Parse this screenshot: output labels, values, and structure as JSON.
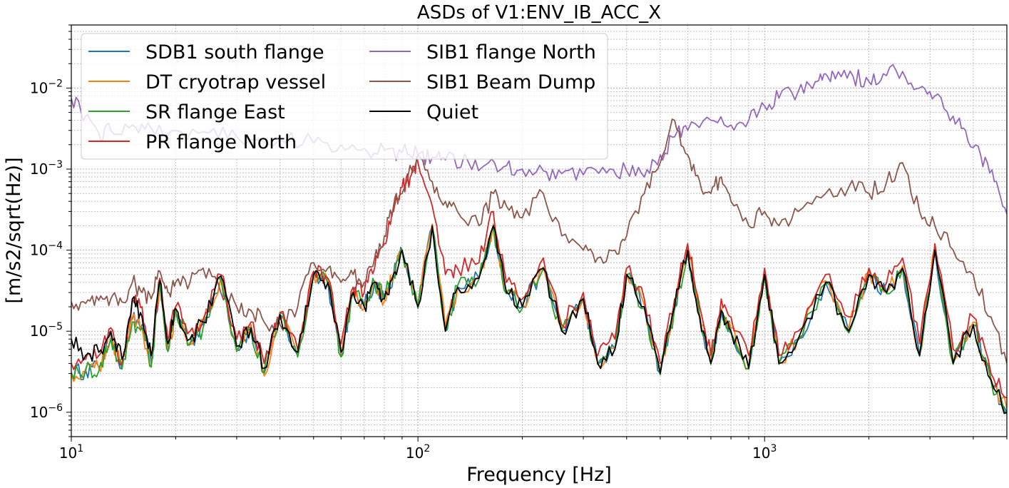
{
  "chart_data": {
    "type": "line",
    "title": "ASDs of V1:ENV_IB_ACC_X",
    "xlabel": "Frequency [Hz]",
    "ylabel": "[m/s2/sqrt(Hz)]",
    "xscale": "log",
    "yscale": "log",
    "xlim": [
      10,
      5000
    ],
    "ylim": [
      5e-07,
      0.06
    ],
    "grid": true,
    "legend_placement": "top-left",
    "legend_columns": 2,
    "x_ticks": [
      {
        "value": 10,
        "base": "10",
        "exp": "1"
      },
      {
        "value": 100,
        "base": "10",
        "exp": "2"
      },
      {
        "value": 1000,
        "base": "10",
        "exp": "3"
      }
    ],
    "y_ticks": [
      {
        "value": 1e-06,
        "base": "10",
        "exp": "−6"
      },
      {
        "value": 1e-05,
        "base": "10",
        "exp": "−5"
      },
      {
        "value": 0.0001,
        "base": "10",
        "exp": "−4"
      },
      {
        "value": 0.001,
        "base": "10",
        "exp": "−3"
      },
      {
        "value": 0.01,
        "base": "10",
        "exp": "−2"
      }
    ],
    "series": [
      {
        "name": "SDB1 south flange",
        "color": "#1f77b4",
        "x": [
          10,
          11,
          12,
          13,
          14,
          15,
          16,
          17,
          18,
          19,
          20,
          22,
          24,
          27,
          30,
          33,
          36,
          40,
          45,
          50,
          55,
          60,
          65,
          70,
          75,
          80,
          85,
          90,
          100,
          110,
          120,
          130,
          150,
          165,
          180,
          200,
          230,
          260,
          300,
          330,
          370,
          400,
          450,
          500,
          550,
          600,
          650,
          700,
          750,
          800,
          900,
          1000,
          1100,
          1250,
          1500,
          1750,
          2000,
          2250,
          2500,
          2800,
          3100,
          3500,
          4000,
          4500,
          5000
        ],
        "y": [
          3e-06,
          3.3e-06,
          3.6e-06,
          9e-06,
          3.5e-06,
          1.4e-05,
          1.2e-05,
          4e-06,
          4e-05,
          6e-06,
          1.8e-05,
          7e-06,
          1.2e-05,
          4.6e-05,
          6e-06,
          1.1e-05,
          3e-06,
          1.6e-05,
          5e-06,
          5e-05,
          4e-05,
          5e-06,
          3e-05,
          2e-05,
          4e-05,
          2.5e-05,
          5e-05,
          0.0001,
          2e-05,
          0.0002,
          1e-05,
          3.5e-05,
          4.5e-05,
          0.0002,
          3e-05,
          2e-05,
          6e-05,
          1e-05,
          2.5e-05,
          4e-06,
          6e-06,
          5e-05,
          2e-05,
          3e-06,
          2e-05,
          0.0001,
          1.5e-05,
          4e-06,
          1.8e-05,
          1e-05,
          3.5e-06,
          5e-05,
          4e-06,
          8e-06,
          4e-05,
          1e-05,
          5e-05,
          3e-05,
          6e-05,
          5e-06,
          0.0001,
          4e-06,
          1.2e-05,
          2.5e-06,
          1e-06
        ]
      },
      {
        "name": "DT cryotrap vessel",
        "color": "#ff7f0e",
        "x": [
          10,
          11,
          12,
          13,
          14,
          15,
          16,
          17,
          18,
          19,
          20,
          22,
          24,
          27,
          30,
          33,
          36,
          40,
          45,
          50,
          55,
          60,
          65,
          70,
          75,
          80,
          85,
          90,
          100,
          110,
          120,
          130,
          150,
          165,
          180,
          200,
          230,
          260,
          300,
          330,
          370,
          400,
          450,
          500,
          550,
          600,
          650,
          700,
          750,
          800,
          900,
          1000,
          1100,
          1250,
          1500,
          1750,
          2000,
          2250,
          2500,
          2800,
          3100,
          3500,
          4000,
          4500,
          5000
        ],
        "y": [
          2.9e-06,
          3.2e-06,
          3.5e-06,
          8.5e-06,
          3.6e-06,
          1.5e-05,
          1.1e-05,
          3.8e-06,
          4.2e-05,
          5.8e-06,
          1.7e-05,
          7.2e-06,
          1.3e-05,
          4.5e-05,
          5.8e-06,
          1.2e-05,
          2.8e-06,
          1.5e-05,
          5.2e-06,
          4.8e-05,
          4.1e-05,
          5.2e-06,
          3.1e-05,
          1.9e-05,
          4.2e-05,
          2.4e-05,
          5.2e-05,
          9.5e-05,
          2.1e-05,
          0.00021,
          1.1e-05,
          3.4e-05,
          4.6e-05,
          0.00021,
          3.1e-05,
          2.1e-05,
          6.2e-05,
          1.1e-05,
          2.4e-05,
          4.1e-06,
          6.2e-06,
          5.1e-05,
          2.1e-05,
          3.1e-06,
          2.1e-05,
          0.00011,
          1.6e-05,
          4.2e-06,
          1.9e-05,
          1.1e-05,
          3.6e-06,
          5.2e-05,
          4.1e-06,
          8.2e-06,
          4.2e-05,
          1.1e-05,
          5.4e-05,
          3.1e-05,
          6.4e-05,
          5.1e-06,
          0.00011,
          4.1e-06,
          1.3e-05,
          2.6e-06,
          1.1e-06
        ]
      },
      {
        "name": "SR flange East",
        "color": "#2ca02c",
        "x": [
          10,
          11,
          12,
          13,
          14,
          15,
          16,
          17,
          18,
          19,
          20,
          22,
          24,
          27,
          30,
          33,
          36,
          40,
          45,
          50,
          55,
          60,
          65,
          70,
          75,
          80,
          85,
          90,
          100,
          110,
          120,
          130,
          150,
          165,
          180,
          200,
          230,
          260,
          300,
          330,
          370,
          400,
          450,
          500,
          550,
          600,
          650,
          700,
          750,
          800,
          900,
          1000,
          1100,
          1250,
          1500,
          1750,
          2000,
          2250,
          2500,
          2800,
          3100,
          3500,
          4000,
          4500,
          5000
        ],
        "y": [
          3.1e-06,
          3.4e-06,
          3.2e-06,
          8e-06,
          3.4e-06,
          1.3e-05,
          1.1e-05,
          3.6e-06,
          3.8e-05,
          5.6e-06,
          1.9e-05,
          6.8e-06,
          1.1e-05,
          4.4e-05,
          5.6e-06,
          1e-05,
          3.1e-06,
          1.7e-05,
          4.8e-06,
          5.1e-05,
          3.9e-05,
          4.8e-06,
          2.9e-05,
          2.1e-05,
          3.9e-05,
          2.6e-05,
          4.9e-05,
          0.0001,
          1.9e-05,
          0.00019,
          1e-05,
          3.6e-05,
          4.4e-05,
          0.00019,
          2.9e-05,
          1.9e-05,
          5.9e-05,
          1e-05,
          2.6e-05,
          3.9e-06,
          5.9e-06,
          4.9e-05,
          1.9e-05,
          2.9e-06,
          1.9e-05,
          9.5e-05,
          1.4e-05,
          3.9e-06,
          1.7e-05,
          9.5e-06,
          3.4e-06,
          4.9e-05,
          3.9e-06,
          7.8e-06,
          3.9e-05,
          9.5e-06,
          4.9e-05,
          2.9e-05,
          5.9e-05,
          4.9e-06,
          0.0001,
          3.9e-06,
          1.2e-05,
          2.4e-06,
          9.5e-07
        ]
      },
      {
        "name": "PR flange North",
        "color": "#d62728",
        "x": [
          10,
          11,
          12,
          13,
          14,
          15,
          16,
          17,
          18,
          19,
          20,
          22,
          24,
          27,
          30,
          33,
          36,
          40,
          45,
          50,
          55,
          60,
          65,
          70,
          75,
          80,
          85,
          90,
          95,
          100,
          110,
          120,
          130,
          150,
          165,
          180,
          200,
          230,
          260,
          300,
          330,
          370,
          400,
          450,
          500,
          550,
          600,
          650,
          700,
          750,
          800,
          900,
          1000,
          1100,
          1250,
          1500,
          1750,
          2000,
          2250,
          2500,
          2800,
          3100,
          3500,
          4000,
          4500,
          5000
        ],
        "y": [
          4e-06,
          4.5e-06,
          5e-06,
          1.1e-05,
          4e-06,
          2.5e-05,
          2e-05,
          5e-06,
          4.5e-05,
          8e-06,
          2e-05,
          1e-05,
          1.4e-05,
          5e-05,
          8e-06,
          1.3e-05,
          4e-06,
          1.7e-05,
          6e-06,
          5.5e-05,
          4.5e-05,
          7e-06,
          3.5e-05,
          3e-05,
          6e-05,
          0.00012,
          0.0003,
          0.0006,
          0.0008,
          0.0012,
          0.00035,
          5e-05,
          6e-05,
          7e-05,
          0.0003,
          4e-05,
          2.5e-05,
          8e-05,
          1.2e-05,
          3e-05,
          5e-06,
          8e-06,
          6e-05,
          2.5e-05,
          4e-06,
          2.5e-05,
          0.00012,
          2e-05,
          5e-06,
          2.5e-05,
          1.5e-05,
          5e-06,
          6e-05,
          5e-06,
          1e-05,
          5e-05,
          1.5e-05,
          6e-05,
          4e-05,
          8e-05,
          7e-06,
          0.00012,
          6e-06,
          1.5e-05,
          3e-06,
          1.5e-06
        ]
      },
      {
        "name": "SIB1 flange North",
        "color": "#9467bd",
        "x": [
          10,
          11,
          12,
          13,
          15,
          17,
          20,
          25,
          30,
          40,
          50,
          60,
          70,
          80,
          90,
          100,
          110,
          120,
          140,
          160,
          180,
          200,
          230,
          260,
          300,
          350,
          400,
          450,
          500,
          550,
          600,
          700,
          800,
          900,
          1000,
          1100,
          1250,
          1400,
          1500,
          1600,
          1800,
          2000,
          2200,
          2500,
          2800,
          3100,
          3500,
          3800,
          4200,
          4600,
          5000
        ],
        "y": [
          0.0075,
          0.0045,
          0.0028,
          0.003,
          0.0035,
          0.0032,
          0.003,
          0.0028,
          0.0025,
          0.0023,
          0.0021,
          0.002,
          0.0018,
          0.0017,
          0.0016,
          0.0015,
          0.0014,
          0.0013,
          0.0012,
          0.0012,
          0.0011,
          0.001,
          0.00095,
          0.00088,
          0.00085,
          0.0009,
          0.00095,
          0.0008,
          0.0015,
          0.0025,
          0.003,
          0.004,
          0.0035,
          0.004,
          0.006,
          0.0075,
          0.009,
          0.012,
          0.015,
          0.013,
          0.014,
          0.012,
          0.015,
          0.016,
          0.01,
          0.008,
          0.0045,
          0.003,
          0.0015,
          0.0007,
          0.00028
        ]
      },
      {
        "name": "SIB1 Beam Dump",
        "color": "#8c564b",
        "x": [
          10,
          11,
          12,
          13,
          14,
          15,
          16,
          17,
          18,
          19,
          20,
          22,
          24,
          27,
          30,
          33,
          36,
          40,
          45,
          50,
          55,
          60,
          65,
          70,
          75,
          80,
          85,
          90,
          100,
          110,
          120,
          130,
          150,
          165,
          180,
          200,
          230,
          260,
          300,
          330,
          370,
          400,
          450,
          500,
          550,
          600,
          650,
          700,
          750,
          800,
          900,
          1000,
          1100,
          1250,
          1500,
          1750,
          2000,
          2250,
          2500,
          2800,
          3100,
          3500,
          4000,
          4500,
          5000
        ],
        "y": [
          2.3e-05,
          2.2e-05,
          2.4e-05,
          2.5e-05,
          2.3e-05,
          4e-05,
          3e-05,
          2.5e-05,
          5.5e-05,
          3e-05,
          4e-05,
          4e-05,
          6e-05,
          3e-05,
          2e-05,
          1.8e-05,
          1.3e-05,
          1.2e-05,
          2e-05,
          7e-05,
          6e-05,
          4e-05,
          5e-05,
          4e-05,
          8e-05,
          0.00015,
          0.00035,
          0.0005,
          0.0015,
          0.0007,
          0.0004,
          0.0003,
          0.0002,
          0.0005,
          0.00035,
          0.00025,
          0.0005,
          0.00015,
          0.0001,
          8e-05,
          0.0001,
          0.00015,
          0.0005,
          0.0012,
          0.004,
          0.0015,
          0.0007,
          0.0005,
          0.0008,
          0.0004,
          0.0002,
          0.0003,
          0.0002,
          0.0003,
          0.0005,
          0.0006,
          0.0005,
          0.0007,
          0.0012,
          0.0003,
          0.0002,
          0.0001,
          5e-05,
          1.5e-05,
          4e-06
        ]
      },
      {
        "name": "Quiet",
        "color": "#000000",
        "x": [
          10,
          11,
          12,
          13,
          14,
          15,
          16,
          17,
          18,
          19,
          20,
          22,
          24,
          27,
          30,
          33,
          36,
          40,
          45,
          50,
          55,
          60,
          65,
          70,
          75,
          80,
          85,
          90,
          100,
          110,
          120,
          130,
          150,
          165,
          180,
          200,
          230,
          260,
          300,
          330,
          370,
          400,
          450,
          500,
          550,
          600,
          650,
          700,
          750,
          800,
          900,
          1000,
          1100,
          1250,
          1500,
          1750,
          2000,
          2250,
          2500,
          2800,
          3100,
          3500,
          4000,
          4500,
          5000
        ],
        "y": [
          8e-06,
          5e-06,
          5.5e-06,
          1e-05,
          4.5e-06,
          2.5e-05,
          1.5e-05,
          5e-06,
          4.2e-05,
          7e-06,
          1.9e-05,
          8e-06,
          1.3e-05,
          4.8e-05,
          6.5e-06,
          1.1e-05,
          3.5e-06,
          1.6e-05,
          5.5e-06,
          5e-05,
          4e-05,
          5.5e-06,
          3e-05,
          2e-05,
          4e-05,
          2.5e-05,
          5e-05,
          0.0001,
          2e-05,
          0.0002,
          1e-05,
          3.5e-05,
          4.5e-05,
          0.0002,
          3e-05,
          2e-05,
          6e-05,
          1e-05,
          2.5e-05,
          4e-06,
          6e-06,
          5e-05,
          2e-05,
          3e-06,
          2e-05,
          0.0001,
          1.5e-05,
          4e-06,
          1.8e-05,
          1e-05,
          3.5e-06,
          5e-05,
          4e-06,
          8e-06,
          4e-05,
          1e-05,
          5e-05,
          3e-05,
          6e-05,
          5e-06,
          0.0001,
          4e-06,
          1.2e-05,
          2.5e-06,
          1e-06
        ]
      }
    ]
  }
}
